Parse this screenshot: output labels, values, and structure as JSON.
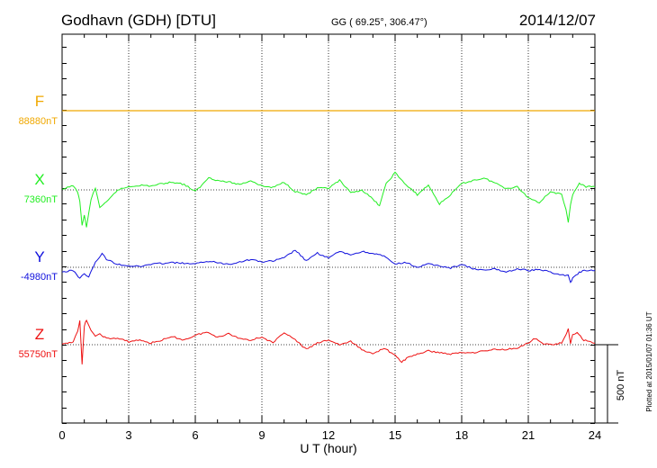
{
  "header": {
    "station": "Godhavn (GDH)  [DTU]",
    "coords": "GG ( 69.25°, 306.47°)",
    "date": "2014/12/07"
  },
  "footer": {
    "plotted": "Plotted at 2015/01/07 01:36 UT"
  },
  "colors": {
    "F": "#f0a800",
    "X": "#22ee22",
    "Y": "#1010dd",
    "Z": "#ee1111",
    "axis": "#000000",
    "grid": "#000000"
  },
  "chart_data": {
    "type": "line",
    "title": "Godhavn (GDH)  [DTU]",
    "xlabel": "U T (hour)",
    "xlim": [
      0,
      24
    ],
    "xticks": [
      0,
      3,
      6,
      9,
      12,
      15,
      18,
      21,
      24
    ],
    "scale_label": "500 nT",
    "scale_nT": 500,
    "series": [
      {
        "name": "F",
        "baseline_label": "88880nT",
        "baseline": 88880,
        "x": [
          0,
          24
        ],
        "y": [
          88880,
          88880
        ]
      },
      {
        "name": "X",
        "baseline_label": "7360nT",
        "baseline": 7360,
        "x": [
          0,
          0.5,
          0.7,
          0.8,
          0.9,
          1.0,
          1.1,
          1.3,
          1.5,
          1.7,
          2.0,
          2.5,
          3.0,
          3.5,
          4.0,
          4.5,
          5.0,
          5.5,
          6.0,
          6.3,
          6.6,
          7.0,
          7.5,
          8.0,
          8.5,
          9.0,
          9.5,
          10.0,
          10.5,
          11.0,
          11.5,
          12.0,
          12.5,
          13.0,
          13.5,
          14.0,
          14.3,
          14.6,
          15.0,
          15.5,
          16.0,
          16.5,
          17.0,
          17.5,
          18.0,
          18.5,
          19.0,
          19.5,
          20.0,
          20.5,
          21.0,
          21.5,
          22.0,
          22.5,
          22.7,
          22.8,
          22.9,
          23.0,
          23.3,
          23.6,
          24.0
        ],
        "y": [
          7360,
          7390,
          7340,
          7290,
          7130,
          7200,
          7120,
          7300,
          7370,
          7250,
          7280,
          7360,
          7380,
          7390,
          7385,
          7400,
          7410,
          7395,
          7350,
          7390,
          7440,
          7420,
          7410,
          7395,
          7420,
          7385,
          7375,
          7410,
          7350,
          7330,
          7370,
          7370,
          7420,
          7340,
          7360,
          7300,
          7260,
          7400,
          7470,
          7390,
          7330,
          7390,
          7270,
          7330,
          7400,
          7420,
          7435,
          7405,
          7370,
          7380,
          7310,
          7280,
          7350,
          7330,
          7230,
          7150,
          7270,
          7330,
          7400,
          7380,
          7380
        ]
      },
      {
        "name": "Y",
        "baseline_label": "-4980nT",
        "baseline": -4980,
        "x": [
          0,
          0.5,
          0.8,
          1.0,
          1.2,
          1.5,
          1.8,
          2.0,
          2.5,
          3.0,
          3.5,
          4.0,
          4.5,
          5.0,
          5.5,
          6.0,
          6.5,
          7.0,
          7.5,
          8.0,
          8.5,
          9.0,
          9.5,
          10.0,
          10.5,
          11.0,
          11.5,
          12.0,
          12.5,
          13.0,
          13.5,
          14.0,
          14.5,
          15.0,
          15.5,
          16.0,
          16.5,
          17.0,
          17.5,
          18.0,
          18.5,
          19.0,
          19.5,
          20.0,
          20.5,
          21.0,
          21.5,
          22.0,
          22.5,
          22.8,
          22.9,
          23.0,
          23.3,
          23.6,
          24.0
        ],
        "y": [
          -5010,
          -5000,
          -5050,
          -5020,
          -5040,
          -4950,
          -4890,
          -4930,
          -4960,
          -4970,
          -4975,
          -4960,
          -4955,
          -4950,
          -4955,
          -4960,
          -4940,
          -4950,
          -4960,
          -4945,
          -4930,
          -4945,
          -4940,
          -4920,
          -4870,
          -4940,
          -4890,
          -4920,
          -4880,
          -4900,
          -4880,
          -4890,
          -4910,
          -4960,
          -4950,
          -4980,
          -4960,
          -4970,
          -4985,
          -4960,
          -4990,
          -5000,
          -4990,
          -5010,
          -4990,
          -5000,
          -4995,
          -5010,
          -5030,
          -5030,
          -5080,
          -5050,
          -5010,
          -5000,
          -5000
        ]
      },
      {
        "name": "Z",
        "baseline_label": "55750nT",
        "baseline": 55750,
        "x": [
          0,
          0.5,
          0.7,
          0.8,
          0.9,
          1.0,
          1.1,
          1.3,
          1.5,
          1.7,
          2.0,
          2.5,
          3.0,
          3.5,
          4.0,
          4.5,
          5.0,
          5.5,
          6.0,
          6.5,
          7.0,
          7.5,
          8.0,
          8.5,
          9.0,
          9.5,
          10.0,
          10.5,
          11.0,
          11.5,
          12.0,
          12.5,
          13.0,
          13.5,
          14.0,
          14.5,
          15.0,
          15.3,
          15.6,
          16.0,
          16.5,
          17.0,
          17.5,
          18.0,
          18.5,
          19.0,
          19.5,
          20.0,
          20.5,
          21.0,
          21.3,
          21.6,
          22.0,
          22.5,
          22.7,
          22.8,
          22.9,
          23.0,
          23.2,
          23.5,
          24.0
        ],
        "y": [
          55750,
          55770,
          55840,
          55900,
          55620,
          55870,
          55910,
          55840,
          55800,
          55820,
          55790,
          55790,
          55770,
          55780,
          55760,
          55780,
          55800,
          55780,
          55810,
          55830,
          55800,
          55820,
          55790,
          55780,
          55800,
          55760,
          55830,
          55780,
          55720,
          55760,
          55780,
          55750,
          55770,
          55720,
          55690,
          55730,
          55680,
          55640,
          55670,
          55690,
          55710,
          55700,
          55690,
          55700,
          55700,
          55710,
          55720,
          55720,
          55730,
          55760,
          55790,
          55760,
          55750,
          55760,
          55810,
          55850,
          55760,
          55810,
          55830,
          55780,
          55760
        ]
      }
    ]
  }
}
